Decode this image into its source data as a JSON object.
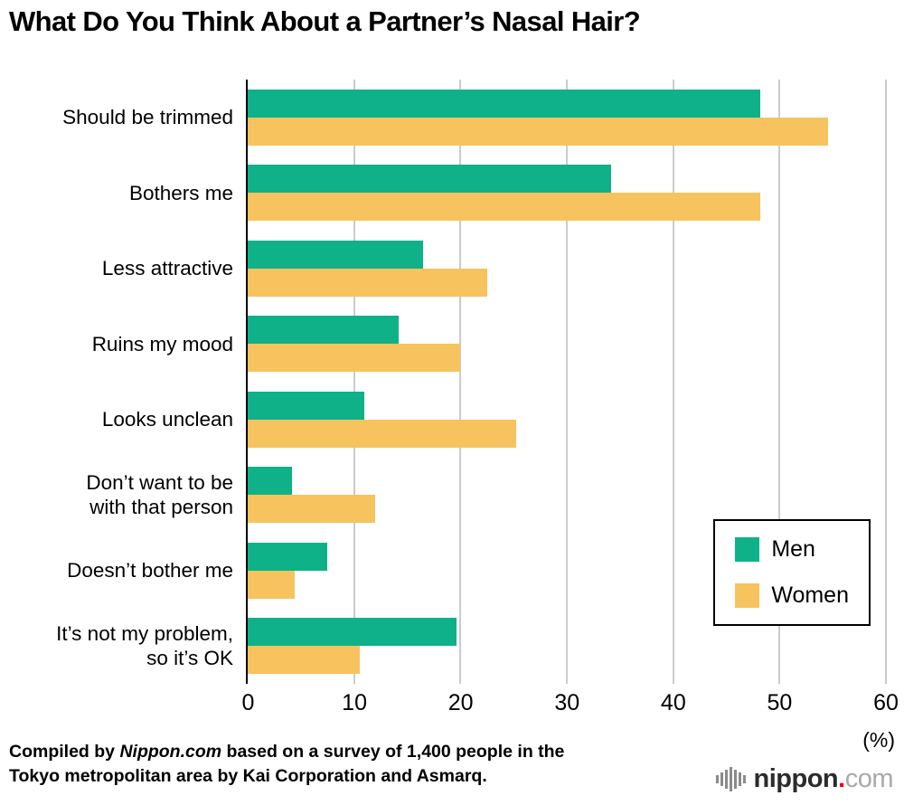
{
  "chart_data": {
    "type": "bar",
    "orientation": "horizontal",
    "title": "What Do You Think About a Partner’s Nasal Hair?",
    "xlabel": "(%)",
    "xlim": [
      0,
      60
    ],
    "xticks": [
      0,
      10,
      20,
      30,
      40,
      50,
      60
    ],
    "grid": "vertical gridlines at each x tick",
    "legend_position": "inside plot, bottom right, boxed",
    "categories": [
      "Should be trimmed",
      "Bothers me",
      "Less attractive",
      "Ruins my mood",
      "Looks unclean",
      "Don’t want to be\nwith that person",
      "Doesn’t bother me",
      "It’s not my problem,\nso it’s OK"
    ],
    "series": [
      {
        "name": "Men",
        "color": "#0FB189",
        "values": [
          48.2,
          34.2,
          16.5,
          14.2,
          11.0,
          4.2,
          7.5,
          19.6
        ]
      },
      {
        "name": "Women",
        "color": "#F6C35F",
        "values": [
          54.6,
          48.2,
          22.5,
          20.0,
          25.2,
          12.0,
          4.4,
          10.5
        ]
      }
    ]
  },
  "footer": {
    "credit_prefix": "Compiled by ",
    "credit_source_italic": "Nippon.com",
    "credit_suffix": " based on a survey of 1,400 people in the\nTokyo metropolitan area by Kai Corporation and Asmarq."
  },
  "logo": {
    "icon": "soundwave-bars-icon",
    "name": "nippon",
    "dot": ".",
    "tld": "com"
  }
}
